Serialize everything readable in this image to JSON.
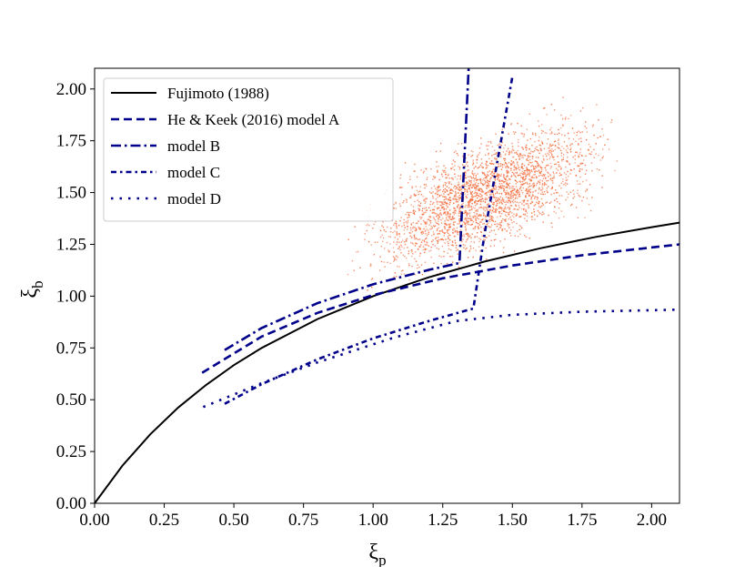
{
  "chart_data": {
    "type": "line",
    "title": "",
    "xlabel": "ξp",
    "ylabel": "ξb",
    "xlabel_main": "ξ",
    "xlabel_sub": "p",
    "ylabel_main": "ξ",
    "ylabel_sub": "b",
    "xlim": [
      0,
      2.1
    ],
    "ylim": [
      0,
      2.1
    ],
    "xticks": [
      "0.00",
      "0.25",
      "0.50",
      "0.75",
      "1.00",
      "1.25",
      "1.50",
      "1.75",
      "2.00"
    ],
    "yticks": [
      "0.00",
      "0.25",
      "0.50",
      "0.75",
      "1.00",
      "1.25",
      "1.50",
      "1.75",
      "2.00"
    ],
    "grid": false,
    "legend_position": "top-left",
    "series": [
      {
        "name": "Fujimoto (1988)",
        "color": "#000000",
        "style": "solid",
        "x": [
          0,
          0.1,
          0.2,
          0.3,
          0.4,
          0.5,
          0.6,
          0.8,
          1.0,
          1.2,
          1.4,
          1.6,
          1.8,
          2.0,
          2.1
        ],
        "y": [
          0,
          0.182,
          0.333,
          0.462,
          0.571,
          0.667,
          0.75,
          0.889,
          1.0,
          1.091,
          1.167,
          1.231,
          1.286,
          1.333,
          1.355
        ]
      },
      {
        "name": "He & Keek (2016) model A",
        "color": "#00008b",
        "style": "dashed",
        "x": [
          0.386,
          0.6,
          0.8,
          1.0,
          1.25,
          1.5,
          1.75,
          2.1
        ],
        "y": [
          0.63,
          0.805,
          0.919,
          1.005,
          1.086,
          1.148,
          1.197,
          1.25
        ]
      },
      {
        "name": "model B",
        "color": "#00008b",
        "style": "dashdot",
        "x": [
          0.467,
          0.6,
          0.8,
          1.0,
          1.2,
          1.31,
          1.343
        ],
        "y": [
          0.74,
          0.846,
          0.966,
          1.057,
          1.127,
          1.16,
          2.1
        ]
      },
      {
        "name": "model C",
        "color": "#00008b",
        "style": "densely-dashdot",
        "x": [
          0.467,
          0.6,
          0.8,
          1.0,
          1.2,
          1.36,
          1.4,
          1.5
        ],
        "y": [
          0.48,
          0.575,
          0.695,
          0.796,
          0.88,
          0.94,
          1.3,
          2.06
        ]
      },
      {
        "name": "model D",
        "color": "#00008b",
        "style": "dotted",
        "x": [
          0.39,
          0.6,
          0.8,
          1.075,
          1.3,
          1.5,
          1.75,
          2.1
        ],
        "y": [
          0.465,
          0.58,
          0.68,
          0.8,
          0.88,
          0.91,
          0.925,
          0.935
        ]
      }
    ],
    "scatter_cloud": {
      "color": "#f26b3a",
      "x_range": [
        0.9,
        1.95
      ],
      "y_range": [
        1.0,
        2.0
      ]
    }
  }
}
